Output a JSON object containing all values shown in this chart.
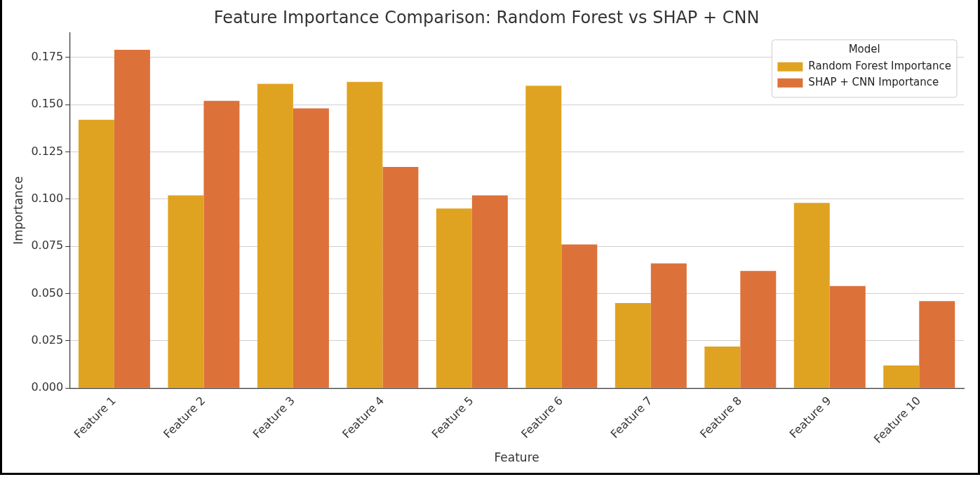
{
  "chart_data": {
    "type": "bar",
    "title": "Feature Importance Comparison: Random Forest vs SHAP + CNN",
    "xlabel": "Feature",
    "ylabel": "Importance",
    "legend_title": "Model",
    "categories": [
      "Feature 1",
      "Feature 2",
      "Feature 3",
      "Feature 4",
      "Feature 5",
      "Feature 6",
      "Feature 7",
      "Feature 8",
      "Feature 9",
      "Feature 10"
    ],
    "series": [
      {
        "name": "Random Forest Importance",
        "color": "#e0a321",
        "values": [
          0.142,
          0.102,
          0.161,
          0.162,
          0.095,
          0.16,
          0.045,
          0.022,
          0.098,
          0.012
        ]
      },
      {
        "name": "SHAP + CNN Importance",
        "color": "#dd713a",
        "values": [
          0.179,
          0.152,
          0.148,
          0.117,
          0.102,
          0.076,
          0.066,
          0.062,
          0.054,
          0.046
        ]
      }
    ],
    "ylim": [
      0,
      0.188
    ],
    "yticks": [
      {
        "value": 0,
        "label": "0.000"
      },
      {
        "value": 0.025,
        "label": "0.025"
      },
      {
        "value": 0.05,
        "label": "0.050"
      },
      {
        "value": 0.075,
        "label": "0.075"
      },
      {
        "value": 0.1,
        "label": "0.100"
      },
      {
        "value": 0.125,
        "label": "0.125"
      },
      {
        "value": 0.15,
        "label": "0.150"
      },
      {
        "value": 0.175,
        "label": "0.175"
      }
    ],
    "grid": "y",
    "legend": "top right"
  }
}
